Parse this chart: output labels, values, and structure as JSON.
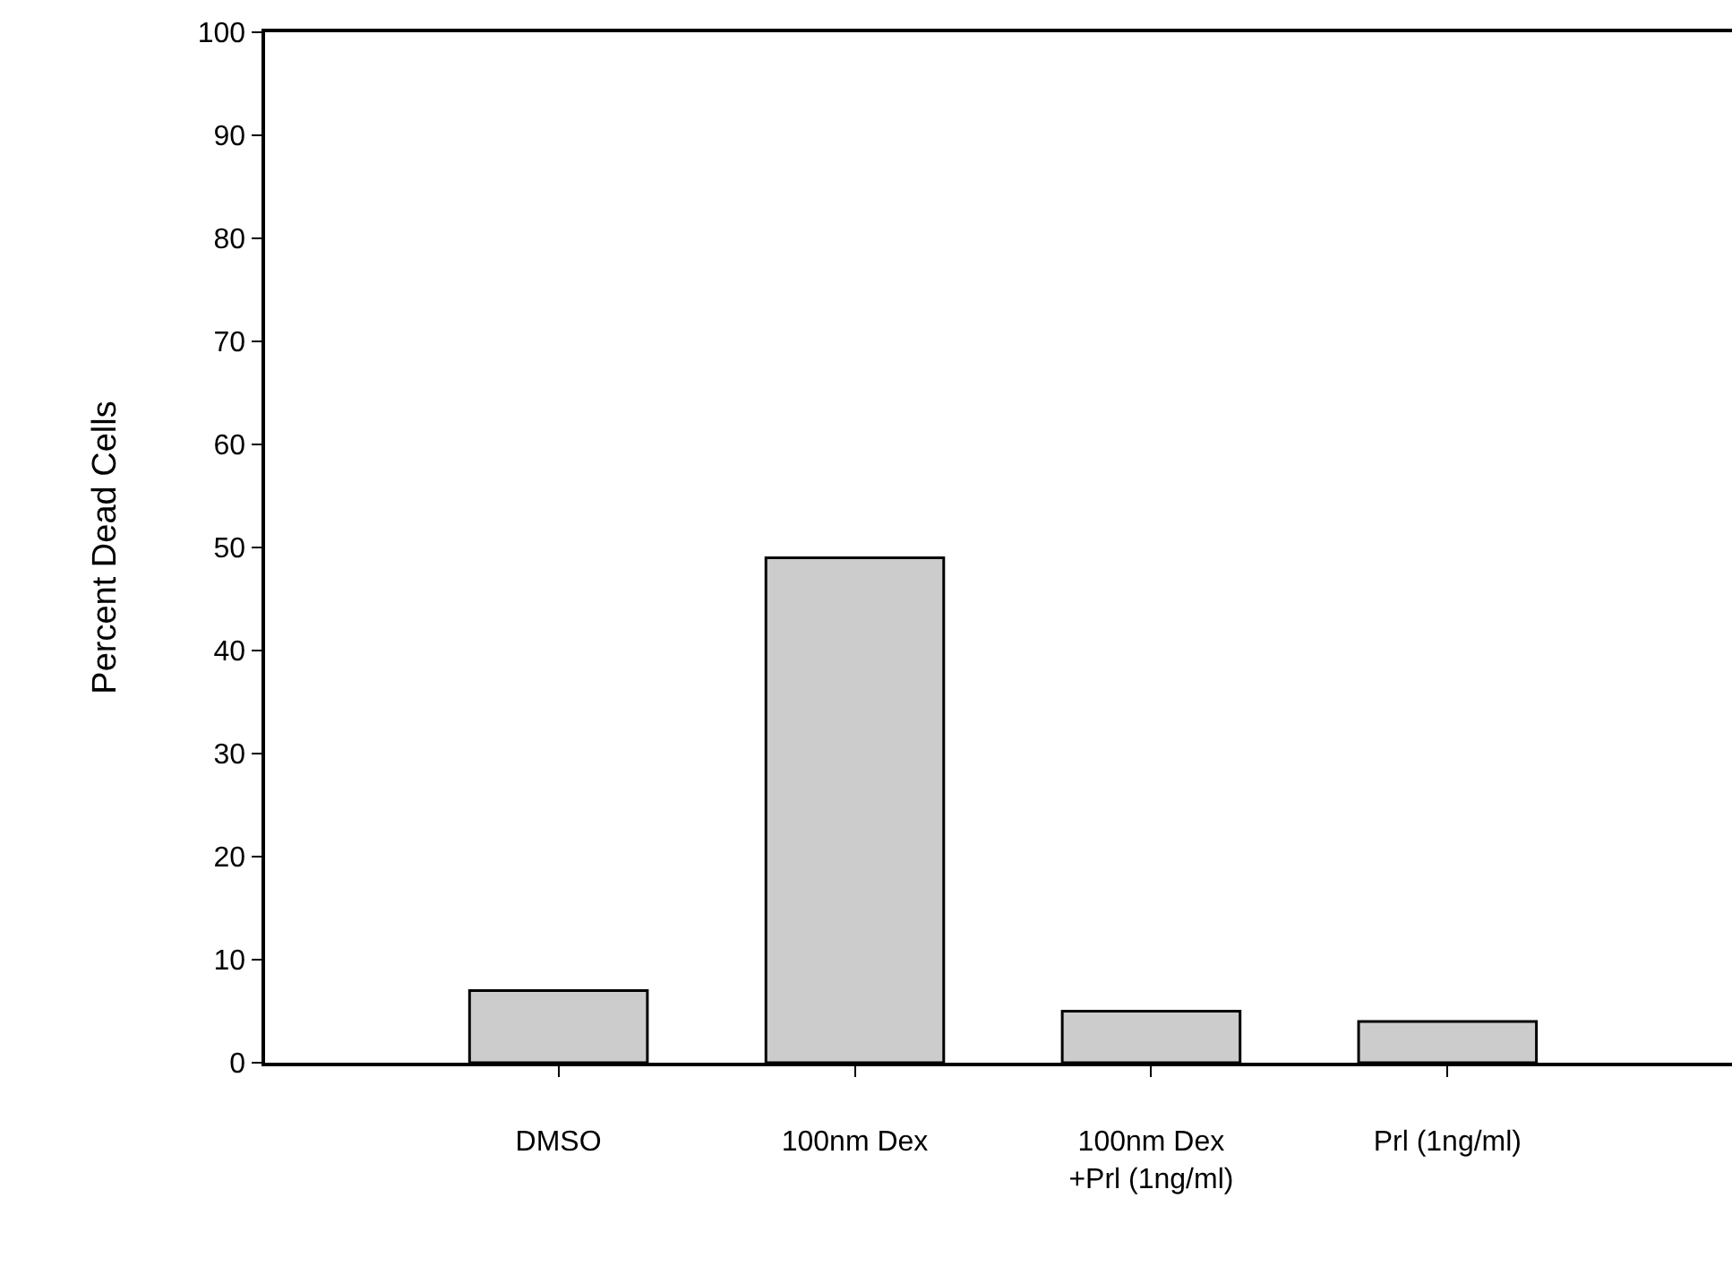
{
  "chart_data": {
    "type": "bar",
    "ylabel": "Percent Dead Cells",
    "categories": [
      "DMSO",
      "100nm Dex",
      "100nm Dex\n+Prl (1ng/ml)",
      "Prl (1ng/ml)"
    ],
    "values": [
      7,
      49,
      5,
      4
    ],
    "color": "#cccccc",
    "ylim": [
      0,
      100
    ],
    "yticks": [
      0,
      10,
      20,
      30,
      40,
      50,
      60,
      70,
      80,
      90,
      100
    ]
  }
}
